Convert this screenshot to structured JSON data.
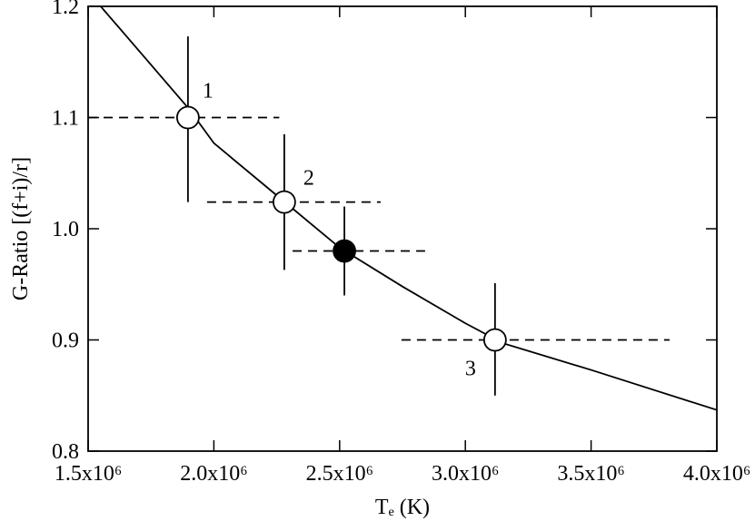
{
  "chart_data": {
    "type": "scatter",
    "x_label": "Tₑ (K)",
    "y_label": "G-Ratio [(f+i)/r]",
    "xlim": [
      1500000,
      4000000
    ],
    "ylim": [
      0.8,
      1.2
    ],
    "xticks": [
      {
        "value": 1500000,
        "label": "1.5x10⁶"
      },
      {
        "value": 2000000,
        "label": "2.0x10⁶"
      },
      {
        "value": 2500000,
        "label": "2.5x10⁶"
      },
      {
        "value": 3000000,
        "label": "3.0x10⁶"
      },
      {
        "value": 3500000,
        "label": "3.5x10⁶"
      },
      {
        "value": 4000000,
        "label": "4.0x10⁶"
      }
    ],
    "yticks": [
      0.8,
      0.9,
      {
        "value": 1.0,
        "label": "1.0"
      },
      1.1,
      1.2
    ],
    "color": "#000000",
    "curve": {
      "x": [
        1550000,
        1900000,
        2000000,
        2250000,
        2500000,
        2750000,
        3000000,
        3150000,
        3500000,
        4000000
      ],
      "y": [
        1.2,
        1.108,
        1.077,
        1.03,
        0.983,
        0.948,
        0.915,
        0.897,
        0.873,
        0.837
      ]
    },
    "points": {
      "x": [
        1897000,
        2280000,
        2519000,
        3118000
      ],
      "y": [
        1.1,
        1.024,
        0.98,
        0.9
      ],
      "x_low": [
        1500000,
        1973000,
        2313000,
        2746000
      ],
      "x_high": [
        2260000,
        2663000,
        2840000,
        3812000
      ],
      "y_low": [
        1.024,
        0.963,
        0.94,
        0.85
      ],
      "y_high": [
        1.173,
        1.085,
        1.02,
        0.951
      ],
      "filled": [
        false,
        false,
        true,
        false
      ],
      "labels": [
        "1",
        "2",
        null,
        "3"
      ]
    }
  }
}
